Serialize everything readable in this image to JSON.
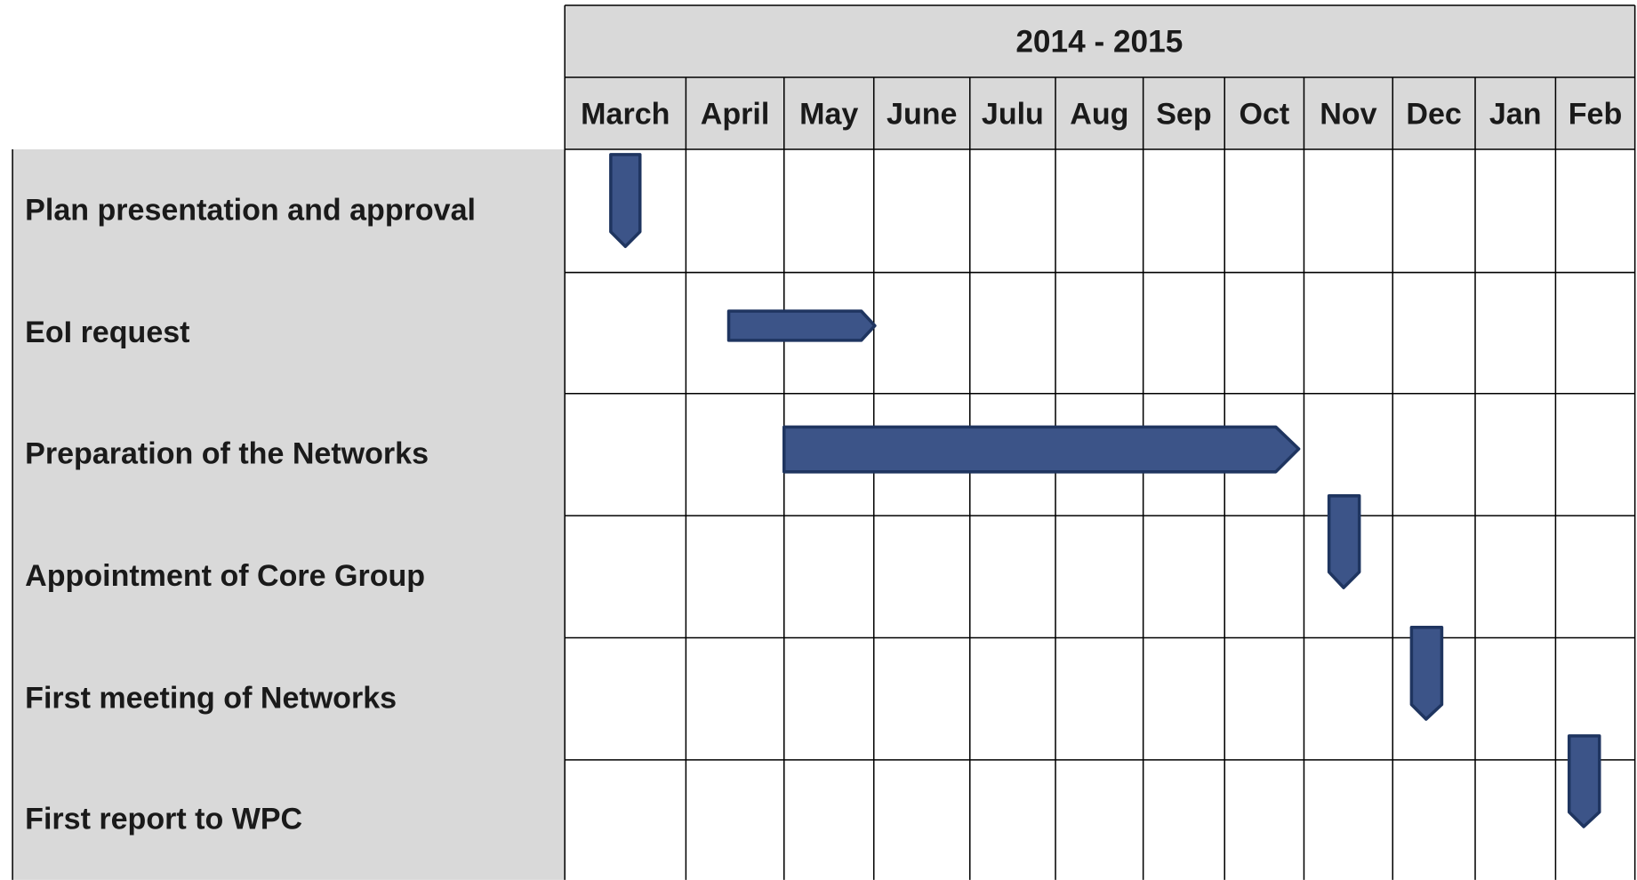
{
  "header": {
    "title": "2014 - 2015",
    "months": [
      "March",
      "April",
      "May",
      "June",
      "Julu",
      "Aug",
      "Sep",
      "Oct",
      "Nov",
      "Dec",
      "Jan",
      "Feb"
    ]
  },
  "tasks": [
    "Plan presentation and approval",
    "EoI request",
    "Preparation of the Networks",
    "Appointment of Core Group",
    "First meeting of Networks",
    "First report to WPC"
  ]
}
